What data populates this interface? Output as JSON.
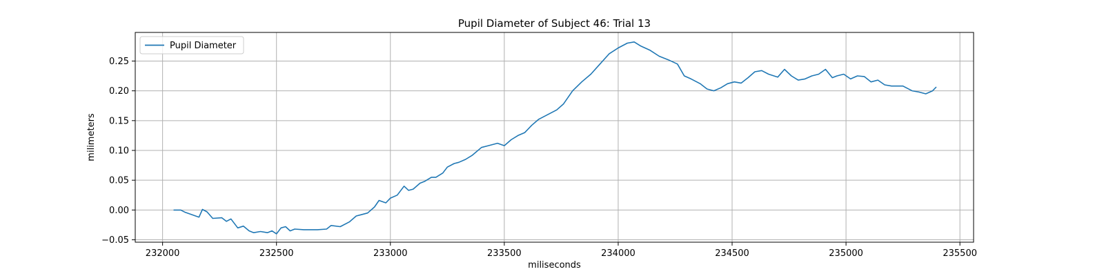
{
  "chart_data": {
    "type": "line",
    "title": "Pupil Diameter of Subject 46: Trial 13",
    "xlabel": "miliseconds",
    "ylabel": "milimeters",
    "xlim": [
      231880,
      235560
    ],
    "ylim": [
      -0.054,
      0.298
    ],
    "xticks": [
      232000,
      232500,
      233000,
      233500,
      234000,
      234500,
      235000,
      235500
    ],
    "xtick_labels": [
      "232000",
      "232500",
      "233000",
      "233500",
      "234000",
      "234500",
      "235000",
      "235500"
    ],
    "yticks": [
      -0.05,
      0.0,
      0.05,
      0.1,
      0.15,
      0.2,
      0.25
    ],
    "ytick_labels": [
      "−0.05",
      "0.00",
      "0.05",
      "0.10",
      "0.15",
      "0.20",
      "0.25"
    ],
    "grid": true,
    "legend": {
      "placement": "upper-left",
      "entries": [
        "Pupil Diameter"
      ]
    },
    "series": [
      {
        "name": "Pupil Diameter",
        "color": "#1f77b4",
        "x": [
          232050,
          232080,
          232100,
          232130,
          232160,
          232175,
          232195,
          232220,
          232260,
          232280,
          232300,
          232330,
          232355,
          232380,
          232400,
          232430,
          232460,
          232480,
          232500,
          232520,
          232540,
          232560,
          232580,
          232620,
          232680,
          232720,
          232740,
          232780,
          232820,
          232850,
          232870,
          232900,
          232930,
          232950,
          232980,
          233000,
          233030,
          233060,
          233080,
          233100,
          233130,
          233150,
          233180,
          233200,
          233230,
          233250,
          233280,
          233300,
          233330,
          233360,
          233400,
          233430,
          233470,
          233500,
          233530,
          233560,
          233590,
          233620,
          233650,
          233690,
          233730,
          233760,
          233800,
          233840,
          233880,
          233920,
          233960,
          234000,
          234040,
          234070,
          234100,
          234140,
          234180,
          234220,
          234260,
          234290,
          234320,
          234360,
          234390,
          234420,
          234450,
          234480,
          234510,
          234540,
          234570,
          234600,
          234630,
          234660,
          234700,
          234730,
          234760,
          234790,
          234820,
          234850,
          234880,
          234910,
          234940,
          234960,
          234990,
          235020,
          235050,
          235080,
          235110,
          235140,
          235170,
          235200,
          235250,
          235290,
          235320,
          235350,
          235380,
          235395
        ],
        "values": [
          0.0,
          0.0,
          -0.004,
          -0.008,
          -0.012,
          0.001,
          -0.003,
          -0.014,
          -0.013,
          -0.019,
          -0.015,
          -0.03,
          -0.027,
          -0.035,
          -0.038,
          -0.036,
          -0.038,
          -0.035,
          -0.04,
          -0.03,
          -0.028,
          -0.035,
          -0.032,
          -0.033,
          -0.033,
          -0.032,
          -0.026,
          -0.028,
          -0.02,
          -0.01,
          -0.008,
          -0.005,
          0.005,
          0.016,
          0.012,
          0.02,
          0.025,
          0.04,
          0.033,
          0.035,
          0.045,
          0.048,
          0.055,
          0.055,
          0.062,
          0.072,
          0.078,
          0.08,
          0.085,
          0.092,
          0.105,
          0.108,
          0.112,
          0.108,
          0.118,
          0.125,
          0.13,
          0.142,
          0.152,
          0.16,
          0.168,
          0.178,
          0.2,
          0.215,
          0.228,
          0.245,
          0.262,
          0.272,
          0.28,
          0.282,
          0.275,
          0.268,
          0.258,
          0.252,
          0.245,
          0.225,
          0.22,
          0.212,
          0.203,
          0.2,
          0.205,
          0.212,
          0.215,
          0.213,
          0.222,
          0.232,
          0.234,
          0.228,
          0.223,
          0.236,
          0.225,
          0.218,
          0.22,
          0.225,
          0.228,
          0.236,
          0.222,
          0.225,
          0.228,
          0.22,
          0.225,
          0.224,
          0.215,
          0.218,
          0.21,
          0.208,
          0.208,
          0.2,
          0.198,
          0.195,
          0.2,
          0.206
        ]
      }
    ]
  }
}
